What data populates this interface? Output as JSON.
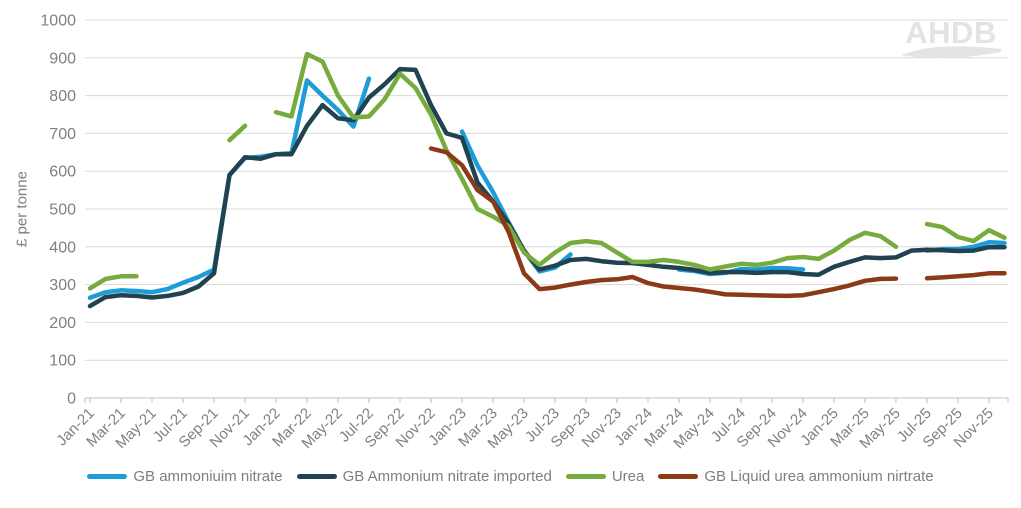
{
  "logo": {
    "text": "AHDB"
  },
  "y_axis": {
    "label": "£ per tonne"
  },
  "legend": [
    {
      "label": "GB ammoniuim nitrate",
      "color": "#1e9cd8"
    },
    {
      "label": "GB Ammonium nitrate imported",
      "color": "#21424f"
    },
    {
      "label": "Urea",
      "color": "#76ab3e"
    },
    {
      "label": "GB Liquid urea ammonium nirtrate",
      "color": "#8b3a17"
    }
  ],
  "chart_data": {
    "type": "line",
    "title": "",
    "xlabel": "",
    "ylabel": "£ per tonne",
    "ylim": [
      0,
      1000
    ],
    "yticks": [
      0,
      100,
      200,
      300,
      400,
      500,
      600,
      700,
      800,
      900,
      1000
    ],
    "grid": "horizontal",
    "legend_position": "bottom",
    "x_tick_every": 2,
    "x": [
      "Jan-21",
      "Feb-21",
      "Mar-21",
      "Apr-21",
      "May-21",
      "Jun-21",
      "Jul-21",
      "Aug-21",
      "Sep-21",
      "Oct-21",
      "Nov-21",
      "Dec-21",
      "Jan-22",
      "Feb-22",
      "Mar-22",
      "Apr-22",
      "May-22",
      "Jun-22",
      "Jul-22",
      "Aug-22",
      "Sep-22",
      "Oct-22",
      "Nov-22",
      "Dec-22",
      "Jan-23",
      "Feb-23",
      "Mar-23",
      "Apr-23",
      "May-23",
      "Jun-23",
      "Jul-23",
      "Aug-23",
      "Sep-23",
      "Oct-23",
      "Nov-23",
      "Dec-23",
      "Jan-24",
      "Feb-24",
      "Mar-24",
      "Apr-24",
      "May-24",
      "Jun-24",
      "Jul-24",
      "Aug-24",
      "Sep-24",
      "Oct-24",
      "Nov-24",
      "Dec-24",
      "Jan-25",
      "Feb-25",
      "Mar-25",
      "Apr-25",
      "May-25",
      "Jun-25",
      "Jul-25",
      "Aug-25",
      "Sep-25",
      "Oct-25",
      "Nov-25",
      "Dec-25"
    ],
    "series": [
      {
        "name": "GB ammoniuim nitrate",
        "color": "#1e9cd8",
        "values": [
          265,
          280,
          285,
          283,
          280,
          288,
          305,
          320,
          340,
          590,
          635,
          638,
          645,
          648,
          840,
          800,
          762,
          718,
          845,
          null,
          null,
          null,
          null,
          null,
          705,
          615,
          545,
          465,
          390,
          335,
          345,
          380,
          null,
          null,
          null,
          null,
          null,
          null,
          340,
          336,
          328,
          331,
          341,
          340,
          344,
          343,
          340,
          null,
          null,
          null,
          null,
          null,
          null,
          null,
          390,
          394,
          394,
          400,
          412,
          410
        ]
      },
      {
        "name": "GB Ammonium nitrate imported",
        "color": "#21424f",
        "values": [
          243,
          267,
          272,
          270,
          266,
          270,
          278,
          295,
          330,
          590,
          637,
          633,
          645,
          645,
          720,
          775,
          740,
          735,
          795,
          830,
          870,
          868,
          775,
          700,
          688,
          570,
          520,
          462,
          390,
          340,
          350,
          365,
          368,
          362,
          358,
          357,
          352,
          347,
          344,
          339,
          331,
          333,
          333,
          331,
          333,
          333,
          328,
          326,
          347,
          360,
          372,
          370,
          372,
          390,
          392,
          391,
          389,
          390,
          399,
          399
        ]
      },
      {
        "name": "Urea",
        "color": "#76ab3e",
        "values": [
          290,
          315,
          322,
          322,
          null,
          null,
          null,
          null,
          null,
          682,
          720,
          null,
          756,
          745,
          910,
          890,
          800,
          742,
          745,
          790,
          858,
          820,
          750,
          655,
          580,
          500,
          480,
          455,
          385,
          352,
          385,
          410,
          415,
          410,
          385,
          360,
          360,
          365,
          360,
          352,
          340,
          348,
          355,
          352,
          358,
          370,
          373,
          368,
          390,
          418,
          437,
          428,
          400,
          null,
          460,
          452,
          426,
          415,
          444,
          424
        ]
      },
      {
        "name": "GB Liquid urea ammonium nirtrate",
        "color": "#8b3a17",
        "values": [
          null,
          null,
          null,
          null,
          null,
          null,
          null,
          null,
          null,
          null,
          null,
          null,
          null,
          null,
          null,
          null,
          null,
          null,
          null,
          null,
          null,
          null,
          660,
          650,
          616,
          550,
          520,
          440,
          330,
          288,
          292,
          300,
          307,
          312,
          314,
          320,
          304,
          295,
          291,
          287,
          281,
          274,
          273,
          272,
          271,
          270,
          272,
          280,
          288,
          298,
          310,
          315,
          316,
          null,
          317,
          319,
          322,
          325,
          330,
          330
        ]
      }
    ],
    "colors": {
      "grid": "#d9d9d9",
      "axis": "#bfbfbf",
      "tick_text": "#808080",
      "logo": "#e3e3e3"
    }
  }
}
